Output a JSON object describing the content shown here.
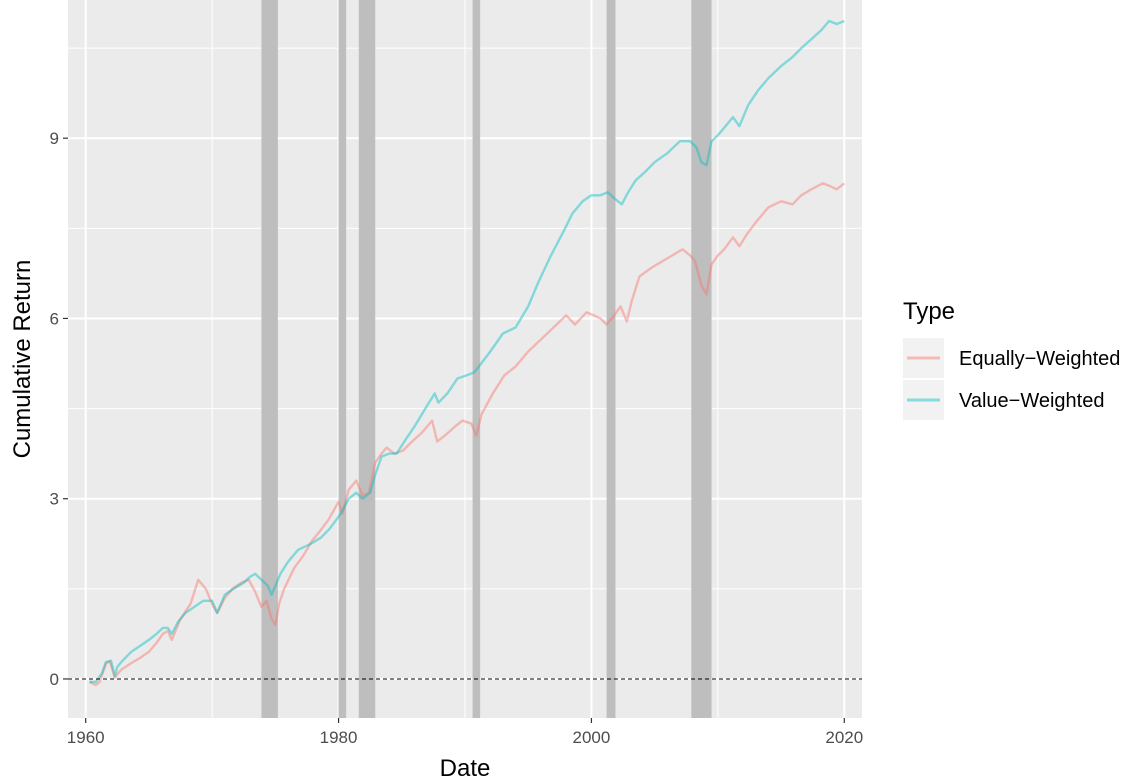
{
  "chart_data": {
    "type": "line",
    "xlabel": "Date",
    "ylabel": "Cumulative Return",
    "xlim": [
      1958.6,
      2021.4
    ],
    "ylim": [
      -0.65,
      11.3
    ],
    "x_ticks": [
      1960,
      1980,
      2000,
      2020
    ],
    "x_tick_labels": [
      "1960",
      "1980",
      "2000",
      "2020"
    ],
    "y_ticks": [
      0,
      3,
      6,
      9
    ],
    "y_tick_labels": [
      "0",
      "3",
      "6",
      "9"
    ],
    "grid": true,
    "reference_line": {
      "y": 0,
      "style": "dashed"
    },
    "recessions": [
      [
        1973.9,
        1975.2
      ],
      [
        1980.0,
        1980.6
      ],
      [
        1981.6,
        1982.9
      ],
      [
        1990.6,
        1991.2
      ],
      [
        2001.2,
        2001.9
      ],
      [
        2007.9,
        2009.5
      ]
    ],
    "recession_color": "#bebebe",
    "panel_background": "#ebebeb",
    "legend": {
      "title": "Type",
      "position": "right"
    },
    "series": [
      {
        "name": "Equally−Weighted",
        "color": "#f8766d",
        "x": [
          1960.3,
          1960.8,
          1961.1,
          1961.6,
          1961.9,
          1962.3,
          1962.5,
          1962.8,
          1963.5,
          1964.3,
          1965.0,
          1965.6,
          1966.1,
          1966.5,
          1966.8,
          1967.5,
          1968.3,
          1968.9,
          1969.5,
          1970.1,
          1970.4,
          1971.0,
          1971.6,
          1972.3,
          1972.9,
          1973.4,
          1973.9,
          1974.3,
          1974.7,
          1975.0,
          1975.3,
          1975.7,
          1976.5,
          1977.2,
          1977.9,
          1978.5,
          1979.2,
          1980.0,
          1980.3,
          1980.8,
          1981.4,
          1981.9,
          1982.4,
          1982.9,
          1983.4,
          1983.8,
          1984.4,
          1985.1,
          1985.8,
          1986.6,
          1987.4,
          1987.8,
          1988.4,
          1989.2,
          1989.8,
          1990.5,
          1990.9,
          1991.3,
          1992.2,
          1993.1,
          1994.0,
          1995.0,
          1996.0,
          1997.0,
          1998.0,
          1998.7,
          1999.6,
          2000.2,
          2000.7,
          2001.2,
          2001.8,
          2002.3,
          2002.8,
          2003.2,
          2003.8,
          2004.8,
          2005.6,
          2006.4,
          2007.2,
          2007.8,
          2008.2,
          2008.7,
          2009.1,
          2009.5,
          2010.0,
          2010.5,
          2011.2,
          2011.7,
          2012.3,
          2013.0,
          2014.0,
          2015.0,
          2015.9,
          2016.6,
          2017.4,
          2018.3,
          2018.9,
          2019.4,
          2020.0
        ],
        "values": [
          -0.05,
          -0.1,
          -0.05,
          0.25,
          0.3,
          0.02,
          0.08,
          0.15,
          0.25,
          0.35,
          0.45,
          0.6,
          0.75,
          0.8,
          0.65,
          1.0,
          1.25,
          1.65,
          1.5,
          1.2,
          1.1,
          1.35,
          1.5,
          1.6,
          1.65,
          1.45,
          1.2,
          1.3,
          1.0,
          0.9,
          1.25,
          1.5,
          1.85,
          2.05,
          2.3,
          2.45,
          2.65,
          2.95,
          2.75,
          3.15,
          3.3,
          3.05,
          3.1,
          3.6,
          3.75,
          3.85,
          3.75,
          3.8,
          3.95,
          4.1,
          4.3,
          3.95,
          4.05,
          4.2,
          4.3,
          4.25,
          4.05,
          4.4,
          4.75,
          5.05,
          5.2,
          5.45,
          5.65,
          5.85,
          6.05,
          5.9,
          6.1,
          6.05,
          6.0,
          5.9,
          6.05,
          6.2,
          5.95,
          6.3,
          6.7,
          6.85,
          6.95,
          7.05,
          7.15,
          7.05,
          6.95,
          6.55,
          6.4,
          6.9,
          7.05,
          7.15,
          7.35,
          7.2,
          7.4,
          7.6,
          7.85,
          7.95,
          7.9,
          8.05,
          8.15,
          8.25,
          8.2,
          8.15,
          8.25
        ]
      },
      {
        "name": "Value−Weighted",
        "color": "#00bfc4",
        "x": [
          1960.3,
          1960.8,
          1961.3,
          1961.6,
          1962.0,
          1962.3,
          1962.5,
          1962.9,
          1963.6,
          1964.3,
          1965.0,
          1965.6,
          1966.1,
          1966.5,
          1966.8,
          1967.3,
          1967.9,
          1968.6,
          1969.3,
          1970.0,
          1970.4,
          1971.0,
          1971.7,
          1972.5,
          1973.0,
          1973.4,
          1973.9,
          1974.4,
          1974.7,
          1975.0,
          1975.4,
          1976.0,
          1976.8,
          1977.8,
          1978.6,
          1979.3,
          1980.0,
          1980.3,
          1980.8,
          1981.4,
          1981.9,
          1982.5,
          1982.9,
          1983.4,
          1984.0,
          1984.6,
          1985.2,
          1986.0,
          1987.0,
          1987.6,
          1987.9,
          1988.6,
          1989.4,
          1990.1,
          1990.7,
          1991.1,
          1992.0,
          1993.0,
          1994.0,
          1995.0,
          1995.8,
          1996.8,
          1997.8,
          1998.5,
          1999.3,
          2000.0,
          2000.7,
          2001.3,
          2001.8,
          2002.4,
          2002.9,
          2003.5,
          2004.3,
          2005.0,
          2006.0,
          2007.0,
          2007.8,
          2008.3,
          2008.7,
          2009.1,
          2009.5,
          2010.0,
          2010.6,
          2011.2,
          2011.7,
          2012.4,
          2013.2,
          2014.0,
          2015.0,
          2015.9,
          2016.6,
          2017.4,
          2018.2,
          2018.8,
          2019.4,
          2020.0
        ],
        "values": [
          -0.05,
          -0.05,
          0.1,
          0.28,
          0.3,
          0.05,
          0.2,
          0.3,
          0.45,
          0.55,
          0.65,
          0.75,
          0.85,
          0.85,
          0.75,
          0.95,
          1.1,
          1.2,
          1.3,
          1.3,
          1.1,
          1.4,
          1.5,
          1.6,
          1.7,
          1.75,
          1.65,
          1.55,
          1.4,
          1.55,
          1.75,
          1.95,
          2.15,
          2.25,
          2.35,
          2.5,
          2.7,
          2.8,
          3.0,
          3.1,
          3.0,
          3.1,
          3.4,
          3.7,
          3.75,
          3.75,
          3.95,
          4.2,
          4.55,
          4.75,
          4.6,
          4.75,
          5.0,
          5.05,
          5.1,
          5.2,
          5.45,
          5.75,
          5.85,
          6.2,
          6.6,
          7.05,
          7.45,
          7.75,
          7.95,
          8.05,
          8.05,
          8.1,
          8.0,
          7.9,
          8.1,
          8.3,
          8.45,
          8.6,
          8.75,
          8.95,
          8.95,
          8.85,
          8.6,
          8.55,
          8.95,
          9.05,
          9.2,
          9.35,
          9.2,
          9.55,
          9.8,
          10.0,
          10.2,
          10.35,
          10.5,
          10.65,
          10.8,
          10.95,
          10.9,
          10.95
        ]
      }
    ]
  }
}
